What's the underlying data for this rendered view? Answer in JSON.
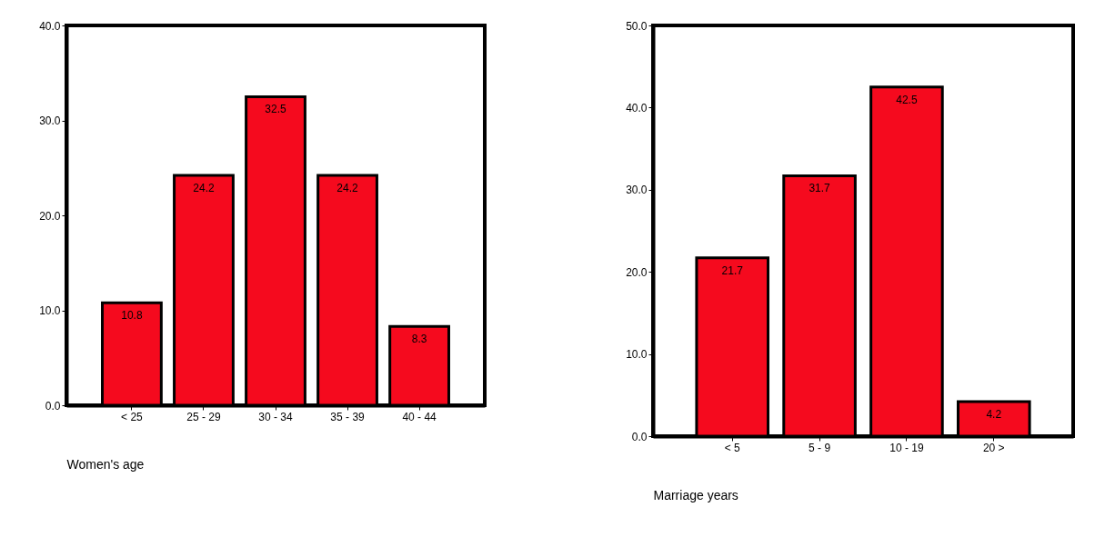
{
  "chart_data": [
    {
      "type": "bar",
      "xlabel": "Women's  age",
      "categories": [
        "<  25",
        "25  -  29",
        "30  -  34",
        "35  -  39",
        "40  -  44"
      ],
      "values": [
        10.8,
        24.2,
        32.5,
        24.2,
        8.3
      ],
      "color": "#f50a1e",
      "ylim": [
        0,
        40
      ],
      "yticks": [
        {
          "value": 0,
          "label": "0.0"
        },
        {
          "value": 10,
          "label": "10.0"
        },
        {
          "value": 20,
          "label": "20.0"
        },
        {
          "value": 30,
          "label": "30.0"
        },
        {
          "value": 40,
          "label": "40.0"
        }
      ],
      "data_labels": true
    },
    {
      "type": "bar",
      "xlabel": "Marriage years",
      "categories": [
        "<  5",
        "5  -  9",
        "10  -  19",
        "20  >"
      ],
      "values": [
        21.7,
        31.7,
        42.5,
        4.2
      ],
      "color": "#f50a1e",
      "ylim": [
        0,
        50
      ],
      "yticks": [
        {
          "value": 0,
          "label": "0.0"
        },
        {
          "value": 10,
          "label": "10.0"
        },
        {
          "value": 20,
          "label": "20.0"
        },
        {
          "value": 30,
          "label": "30.0"
        },
        {
          "value": 40,
          "label": "40.0"
        },
        {
          "value": 50,
          "label": "50.0"
        }
      ],
      "data_labels": true
    }
  ]
}
